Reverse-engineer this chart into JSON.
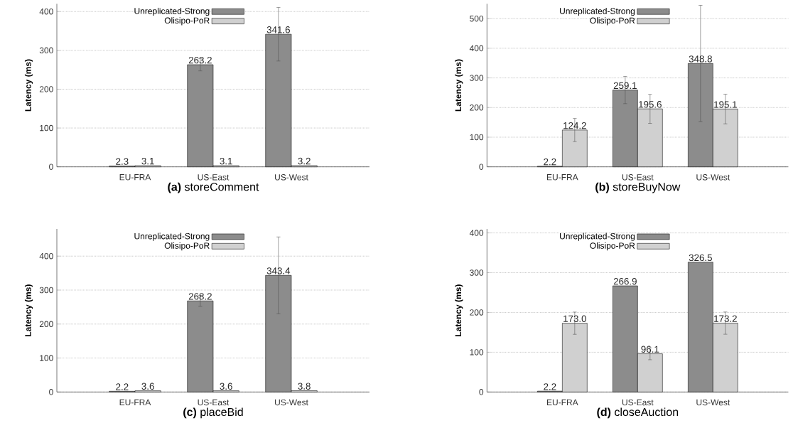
{
  "chart_data": [
    {
      "type": "bar",
      "title": "**(a)** storeComment",
      "ylabel": "Latency (ms)",
      "categories": [
        "EU-FRA",
        "US-East",
        "US-West"
      ],
      "ylim": [
        0,
        420
      ],
      "yticks": [
        0,
        100,
        200,
        300,
        400
      ],
      "grid": "y",
      "legend": "top",
      "series": [
        {
          "name": "Unreplicated-Strong",
          "color": "#8c8c8c",
          "values": [
            2.3,
            263.2,
            341.6
          ],
          "errors": [
            null,
            16,
            69
          ],
          "value_labels": [
            "2.3",
            "263.2",
            "341.6"
          ]
        },
        {
          "name": "Olisipo-PoR",
          "color": "#d0d0d0",
          "values": [
            3.1,
            3.1,
            3.2
          ],
          "errors": [
            null,
            null,
            null
          ],
          "value_labels": [
            "3.1",
            "3.1",
            "3.2"
          ]
        }
      ]
    },
    {
      "type": "bar",
      "title": "**(b)** storeBuyNow",
      "ylabel": "Latency (ms)",
      "categories": [
        "EU-FRA",
        "US-East",
        "US-West"
      ],
      "ylim": [
        0,
        550
      ],
      "yticks": [
        0,
        100,
        200,
        300,
        400,
        500
      ],
      "grid": "y",
      "legend": "top",
      "series": [
        {
          "name": "Unreplicated-Strong",
          "color": "#8c8c8c",
          "values": [
            2.2,
            259.1,
            348.8
          ],
          "errors": [
            null,
            46,
            196
          ],
          "value_labels": [
            "2.2",
            "259.1",
            "348.8"
          ]
        },
        {
          "name": "Olisipo-PoR",
          "color": "#d0d0d0",
          "values": [
            124.2,
            195.6,
            195.1
          ],
          "errors": [
            39,
            49,
            50
          ],
          "value_labels": [
            "124.2",
            "195.6",
            "195.1"
          ]
        }
      ]
    },
    {
      "type": "bar",
      "title": "**(c)** placeBid",
      "ylabel": "Latency (ms)",
      "categories": [
        "EU-FRA",
        "US-East",
        "US-West"
      ],
      "ylim": [
        0,
        480
      ],
      "yticks": [
        0,
        100,
        200,
        300,
        400
      ],
      "grid": "y",
      "legend": "top",
      "series": [
        {
          "name": "Unreplicated-Strong",
          "color": "#8c8c8c",
          "values": [
            2.2,
            268.2,
            343.4
          ],
          "errors": [
            null,
            16,
            113
          ],
          "value_labels": [
            "2.2",
            "268.2",
            "343.4"
          ]
        },
        {
          "name": "Olisipo-PoR",
          "color": "#d0d0d0",
          "values": [
            3.6,
            3.6,
            3.8
          ],
          "errors": [
            null,
            null,
            null
          ],
          "value_labels": [
            "3.6",
            "3.6",
            "3.8"
          ]
        }
      ]
    },
    {
      "type": "bar",
      "title": "**(d)** closeAuction",
      "ylabel": "Latency (ms)",
      "categories": [
        "EU-FRA",
        "US-East",
        "US-West"
      ],
      "ylim": [
        0,
        410
      ],
      "yticks": [
        0,
        100,
        200,
        300,
        400
      ],
      "grid": "y",
      "legend": "top",
      "series": [
        {
          "name": "Unreplicated-Strong",
          "color": "#8c8c8c",
          "values": [
            2.2,
            266.9,
            326.5
          ],
          "errors": [
            null,
            null,
            null
          ],
          "value_labels": [
            "2.2",
            "266.9",
            "326.5"
          ]
        },
        {
          "name": "Olisipo-PoR",
          "color": "#d0d0d0",
          "values": [
            173.0,
            96.1,
            173.2
          ],
          "errors": [
            28,
            15,
            28
          ],
          "value_labels": [
            "173.0",
            "96.1",
            "173.2"
          ]
        }
      ]
    }
  ]
}
